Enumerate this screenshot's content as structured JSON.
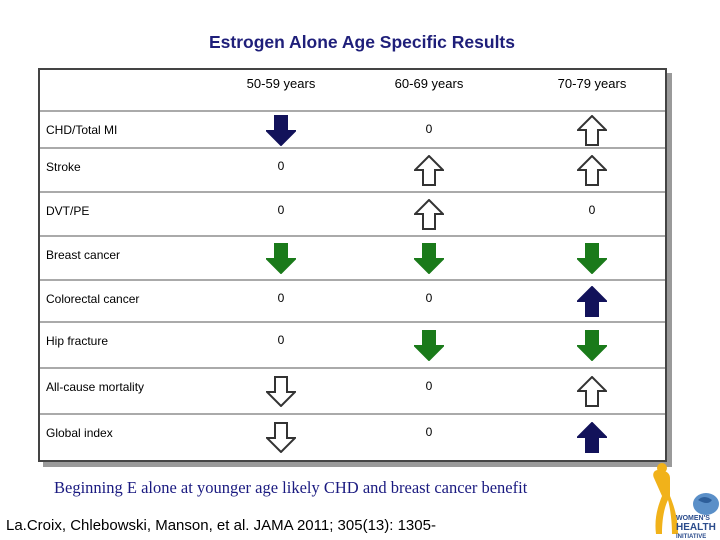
{
  "title": "Estrogen Alone Age Specific Results",
  "columns": [
    "50-59 years",
    "60-69 years",
    "70-79 years"
  ],
  "rows": [
    {
      "label": "CHD/Total MI",
      "bold": false,
      "cells": [
        {
          "type": "arrow",
          "direction": "down",
          "fill": "navy"
        },
        {
          "type": "zero",
          "text": "0",
          "pos": "high"
        },
        {
          "type": "arrow",
          "direction": "up",
          "fill": "outline"
        }
      ]
    },
    {
      "label": "Stroke",
      "bold": false,
      "cells": [
        {
          "type": "zero",
          "text": "0",
          "pos": "high"
        },
        {
          "type": "arrow",
          "direction": "up",
          "fill": "outline"
        },
        {
          "type": "arrow",
          "direction": "up",
          "fill": "outline"
        }
      ]
    },
    {
      "label": "DVT/PE",
      "bold": false,
      "cells": [
        {
          "type": "zero",
          "text": "0",
          "pos": "high"
        },
        {
          "type": "arrow",
          "direction": "up",
          "fill": "outline"
        },
        {
          "type": "zero",
          "text": "0",
          "pos": "high"
        }
      ]
    },
    {
      "label": "Breast cancer",
      "bold": false,
      "cells": [
        {
          "type": "arrow",
          "direction": "down",
          "fill": "green"
        },
        {
          "type": "arrow",
          "direction": "down",
          "fill": "green"
        },
        {
          "type": "arrow",
          "direction": "down",
          "fill": "green"
        }
      ]
    },
    {
      "label": "Colorectal cancer",
      "bold": false,
      "cells": [
        {
          "type": "zero",
          "text": "0",
          "pos": "high"
        },
        {
          "type": "zero",
          "text": "0",
          "pos": "high"
        },
        {
          "type": "arrow",
          "direction": "up",
          "fill": "navy"
        }
      ]
    },
    {
      "label": "Hip fracture",
      "bold": false,
      "cells": [
        {
          "type": "zero",
          "text": "0",
          "pos": "high"
        },
        {
          "type": "arrow",
          "direction": "down",
          "fill": "green"
        },
        {
          "type": "arrow",
          "direction": "down",
          "fill": "green"
        }
      ]
    },
    {
      "label": "All-cause mortality",
      "bold": false,
      "cells": [
        {
          "type": "arrow",
          "direction": "down",
          "fill": "outline"
        },
        {
          "type": "zero",
          "text": "0",
          "pos": "high"
        },
        {
          "type": "arrow",
          "direction": "up",
          "fill": "outline"
        }
      ]
    },
    {
      "label": "Global index",
      "bold": false,
      "cells": [
        {
          "type": "arrow",
          "direction": "down",
          "fill": "outline"
        },
        {
          "type": "zero",
          "text": "0",
          "pos": "high"
        },
        {
          "type": "arrow",
          "direction": "up",
          "fill": "navy"
        }
      ]
    }
  ],
  "colors": {
    "navy": "#12125a",
    "green": "#1a7a1a",
    "outline_stroke": "#333333",
    "title": "#1f1f7a"
  },
  "footer": "Beginning E alone at younger age likely CHD and breast cancer benefit",
  "citation": "La.Croix, Chlebowski, Manson, et al. JAMA 2011; 305(13): 1305-",
  "logo": {
    "line1": "WOMEN'S",
    "line2": "HEALTH",
    "line3": "INITIATIVE"
  }
}
